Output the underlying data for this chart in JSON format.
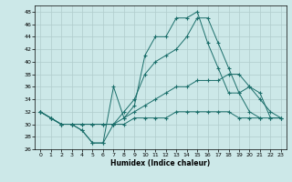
{
  "xlabel": "Humidex (Indice chaleur)",
  "background_color": "#cce8e8",
  "grid_color": "#b0cccc",
  "line_color": "#1a6e6a",
  "xlim": [
    -0.5,
    23.5
  ],
  "ylim": [
    26,
    49
  ],
  "yticks": [
    26,
    28,
    30,
    32,
    34,
    36,
    38,
    40,
    42,
    44,
    46,
    48
  ],
  "xticks": [
    0,
    1,
    2,
    3,
    4,
    5,
    6,
    7,
    8,
    9,
    10,
    11,
    12,
    13,
    14,
    15,
    16,
    17,
    18,
    19,
    20,
    21,
    22,
    23
  ],
  "series": [
    [
      32,
      31,
      30,
      30,
      29,
      27,
      27,
      36,
      31,
      33,
      41,
      44,
      44,
      47,
      47,
      48,
      43,
      39,
      35,
      35,
      32,
      31
    ],
    [
      32,
      31,
      30,
      30,
      29,
      27,
      27,
      30,
      32,
      34,
      38,
      40,
      41,
      42,
      44,
      47,
      47,
      43,
      39,
      35,
      36,
      34,
      32,
      31
    ],
    [
      32,
      31,
      30,
      30,
      30,
      30,
      30,
      30,
      31,
      32,
      33,
      34,
      35,
      36,
      36,
      37,
      37,
      37,
      38,
      38,
      36,
      35,
      31,
      31
    ],
    [
      32,
      31,
      30,
      30,
      30,
      30,
      30,
      30,
      30,
      31,
      31,
      31,
      31,
      32,
      32,
      32,
      32,
      32,
      32,
      31,
      31,
      31,
      31,
      31
    ]
  ],
  "series_x": [
    [
      0,
      1,
      2,
      3,
      4,
      5,
      6,
      7,
      8,
      9,
      10,
      11,
      12,
      13,
      14,
      15,
      16,
      17,
      18,
      19,
      20,
      21
    ],
    [
      0,
      1,
      2,
      3,
      4,
      5,
      6,
      7,
      8,
      9,
      10,
      11,
      12,
      13,
      14,
      15,
      16,
      17,
      18,
      19,
      20,
      21,
      22,
      23
    ],
    [
      0,
      1,
      2,
      3,
      4,
      5,
      6,
      7,
      8,
      9,
      10,
      11,
      12,
      13,
      14,
      15,
      16,
      17,
      18,
      19,
      20,
      21,
      22,
      23
    ],
    [
      0,
      1,
      2,
      3,
      4,
      5,
      6,
      7,
      8,
      9,
      10,
      11,
      12,
      13,
      14,
      15,
      16,
      17,
      18,
      19,
      20,
      21,
      22,
      23
    ]
  ]
}
